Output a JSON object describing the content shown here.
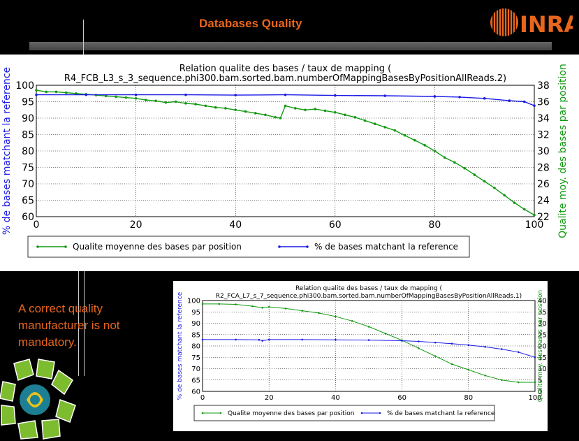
{
  "slide": {
    "title": "Databases Quality",
    "logo_text": "INRA",
    "caption": "A correct quality manufacturer is not mandatory.",
    "colors": {
      "title": "#e8661c",
      "green": "#119911",
      "blue": "#1a1ae6",
      "background": "#000000"
    }
  },
  "chart_data": [
    {
      "type": "line",
      "title": "Relation qualite des bases / taux de mapping (",
      "subtitle": "R4_FCB_L3_s_3_sequence.phi300.bam.sorted.bam.numberOfMappingBasesByPositionAllReads.2)",
      "xlabel": "",
      "ylabel_left": "% de bases matchant la reference",
      "ylabel_right": "Qualite moy. des bases par position",
      "xlim": [
        0,
        100
      ],
      "ylim_left": [
        60,
        100
      ],
      "ylim_right": [
        22,
        38
      ],
      "xticks": [
        "0",
        "20",
        "40",
        "60",
        "80",
        "100"
      ],
      "yticks_left": [
        "60",
        "65",
        "70",
        "75",
        "80",
        "85",
        "90",
        "95",
        "100"
      ],
      "yticks_right": [
        "22",
        "24",
        "26",
        "28",
        "30",
        "32",
        "34",
        "36",
        "38"
      ],
      "grid": true,
      "legend_position": "bottom",
      "series": [
        {
          "name": "Qualite moyenne des bases par position",
          "axis": "right",
          "color": "#119911",
          "x": [
            0,
            2,
            4,
            6,
            8,
            10,
            12,
            14,
            16,
            18,
            20,
            22,
            24,
            26,
            28,
            30,
            32,
            34,
            36,
            38,
            40,
            42,
            44,
            46,
            48,
            49,
            50,
            52,
            54,
            56,
            58,
            60,
            62,
            64,
            66,
            68,
            70,
            72,
            74,
            76,
            78,
            80,
            82,
            84,
            86,
            88,
            90,
            92,
            94,
            96,
            98,
            100
          ],
          "y": [
            37.4,
            37.2,
            37.2,
            37.1,
            37.0,
            36.9,
            36.8,
            36.7,
            36.6,
            36.5,
            36.4,
            36.2,
            36.1,
            35.9,
            36.0,
            35.8,
            35.7,
            35.5,
            35.3,
            35.2,
            35.0,
            34.8,
            34.6,
            34.4,
            34.1,
            34.0,
            35.5,
            35.2,
            35.0,
            35.1,
            34.9,
            34.7,
            34.4,
            34.1,
            33.7,
            33.3,
            32.9,
            32.5,
            31.9,
            31.3,
            30.7,
            30.0,
            29.2,
            28.6,
            27.9,
            27.1,
            26.3,
            25.5,
            24.6,
            23.7,
            22.9,
            22.2
          ]
        },
        {
          "name": "% de bases matchant la reference",
          "axis": "left",
          "color": "#1a1ae6",
          "x": [
            0,
            10,
            20,
            30,
            40,
            50,
            60,
            70,
            80,
            85,
            90,
            95,
            98,
            100
          ],
          "y": [
            97.1,
            97.1,
            97.1,
            97.1,
            97.0,
            97.1,
            96.9,
            96.8,
            96.6,
            96.4,
            96.0,
            95.3,
            95.0,
            93.8
          ]
        }
      ]
    },
    {
      "type": "line",
      "title": "Relation qualite des bases / taux de mapping (",
      "subtitle": "R2_FCA_L7_s_7_sequence.phi300.bam.sorted.bam.numberOfMappingBasesByPositionAllReads.1)",
      "xlabel": "",
      "ylabel_left": "% de bases matchant la reference",
      "ylabel_right": "Qualite moy. des bases par position",
      "xlim": [
        0,
        100
      ],
      "ylim_left": [
        60,
        100
      ],
      "ylim_right": [
        0,
        40
      ],
      "xticks": [
        "0",
        "20",
        "40",
        "60",
        "80",
        "100"
      ],
      "yticks_left": [
        "60",
        "65",
        "70",
        "75",
        "80",
        "85",
        "90",
        "95",
        "100"
      ],
      "yticks_right": [
        "0",
        "5",
        "10",
        "15",
        "20",
        "25",
        "30",
        "35",
        "40"
      ],
      "grid": true,
      "legend_position": "bottom",
      "series": [
        {
          "name": "Qualite moyenne des bases par position",
          "axis": "right",
          "color": "#119911",
          "x": [
            0,
            5,
            10,
            15,
            18,
            20,
            25,
            30,
            35,
            40,
            45,
            50,
            55,
            60,
            65,
            70,
            75,
            80,
            85,
            90,
            95,
            100
          ],
          "y": [
            38.5,
            38.5,
            38.3,
            37.5,
            36.8,
            37.2,
            36.5,
            35.5,
            34.5,
            33.0,
            31.0,
            28.5,
            25.5,
            22.5,
            19.0,
            15.5,
            12.0,
            9.5,
            7.0,
            5.0,
            4.0,
            4.0
          ]
        },
        {
          "name": "% de bases matchant la reference",
          "axis": "left",
          "color": "#1a1ae6",
          "x": [
            0,
            10,
            17,
            18,
            20,
            30,
            40,
            50,
            60,
            65,
            70,
            75,
            80,
            85,
            90,
            95,
            100
          ],
          "y": [
            82.8,
            82.8,
            82.7,
            82.3,
            82.8,
            82.8,
            82.7,
            82.6,
            82.3,
            82.0,
            81.5,
            81.0,
            80.4,
            79.6,
            78.6,
            77.3,
            75.0
          ]
        }
      ]
    }
  ]
}
